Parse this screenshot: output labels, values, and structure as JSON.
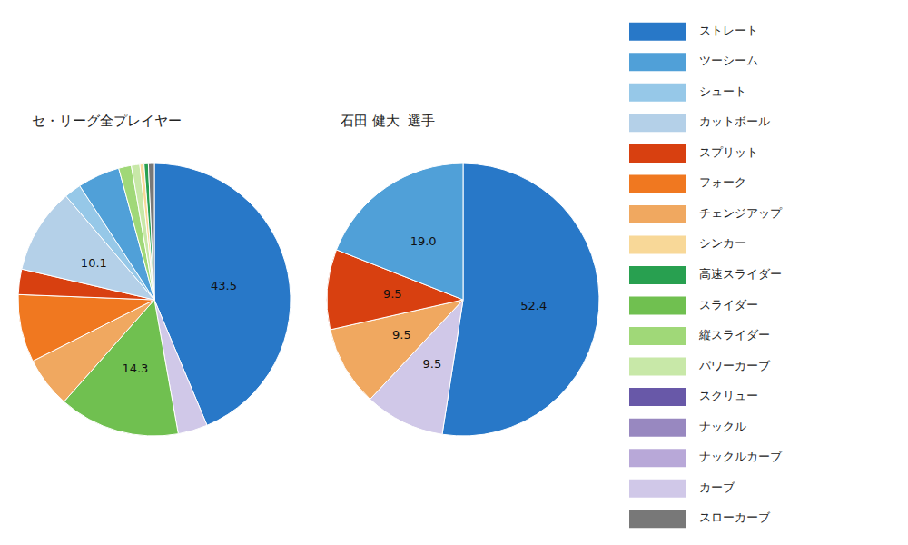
{
  "chart_data": [
    {
      "type": "pie",
      "title": "セ・リーグ全プレイヤー",
      "categories": [
        "ストレート",
        "カーブ",
        "スライダー",
        "チェンジアップ",
        "フォーク",
        "スプリット",
        "カットボール",
        "シュート",
        "ツーシーム",
        "縦スライダー",
        "パワーカーブ",
        "シンカー",
        "高速スライダー",
        "スローカーブ"
      ],
      "values": [
        43.5,
        3.5,
        14.3,
        6.0,
        8.0,
        3.0,
        10.1,
        2.0,
        5.0,
        1.5,
        1.0,
        0.5,
        0.5,
        0.7
      ],
      "value_labels": [
        "43.5",
        null,
        "14.3",
        null,
        null,
        null,
        "10.1",
        null,
        null,
        null,
        null,
        null,
        null,
        null
      ],
      "colors": [
        "#2878c8",
        "#d0c8e8",
        "#70c050",
        "#f0a860",
        "#f07820",
        "#d84010",
        "#b4d0e8",
        "#96c8e8",
        "#50a0d8",
        "#a0d878",
        "#c8e8a8",
        "#f8d898",
        "#28a050",
        "#787878"
      ],
      "data_labels": true
    },
    {
      "type": "pie",
      "title": "石田 健大  選手",
      "categories": [
        "ストレート",
        "カーブ",
        "チェンジアップ",
        "スプリット",
        "ツーシーム"
      ],
      "values": [
        52.4,
        9.5,
        9.5,
        9.5,
        19.0
      ],
      "value_labels": [
        "52.4",
        "9.5",
        "9.5",
        "9.5",
        "19.0"
      ],
      "colors": [
        "#2878c8",
        "#d0c8e8",
        "#f0a860",
        "#d84010",
        "#50a0d8"
      ],
      "data_labels": true
    }
  ],
  "legend": {
    "position": "right",
    "categories": [
      "ストレート",
      "ツーシーム",
      "シュート",
      "カットボール",
      "スプリット",
      "フォーク",
      "チェンジアップ",
      "シンカー",
      "高速スライダー",
      "スライダー",
      "縦スライダー",
      "パワーカーブ",
      "スクリュー",
      "ナックル",
      "ナックルカーブ",
      "カーブ",
      "スローカーブ"
    ],
    "colors": [
      "#2878c8",
      "#50a0d8",
      "#96c8e8",
      "#b4d0e8",
      "#d84010",
      "#f07820",
      "#f0a860",
      "#f8d898",
      "#28a050",
      "#70c050",
      "#a0d878",
      "#c8e8a8",
      "#6858a8",
      "#9888c0",
      "#b8a8d8",
      "#d0c8e8",
      "#787878"
    ]
  }
}
